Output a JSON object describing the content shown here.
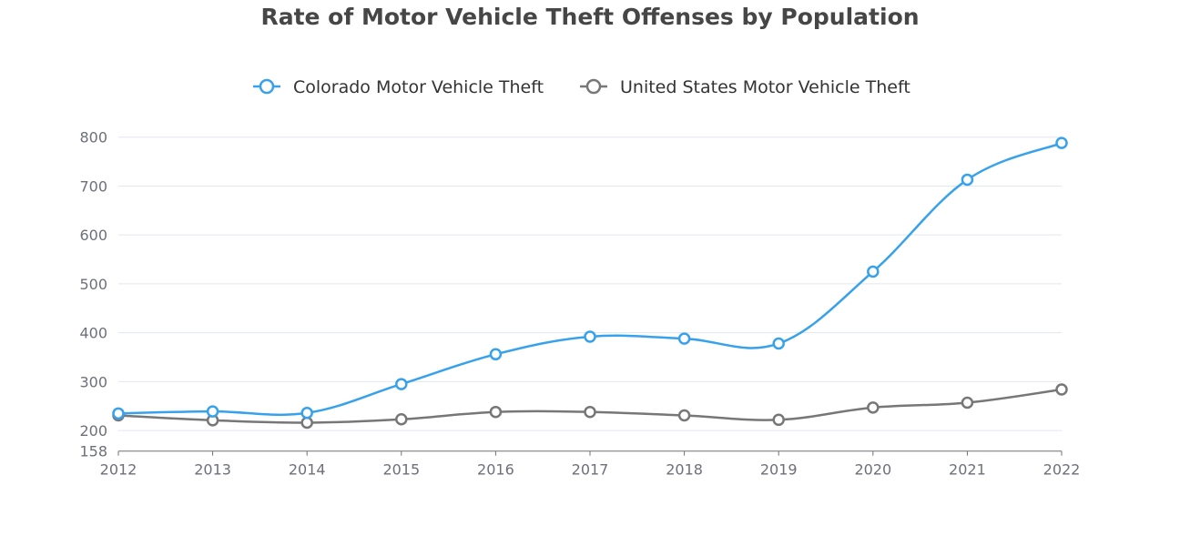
{
  "chart_data": {
    "type": "line",
    "title": "Rate of Motor Vehicle Theft Offenses by Population",
    "xlabel": "",
    "ylabel": "",
    "categories": [
      "2012",
      "2013",
      "2014",
      "2015",
      "2016",
      "2017",
      "2018",
      "2019",
      "2020",
      "2021",
      "2022"
    ],
    "ylim": [
      158,
      800
    ],
    "yticks": [
      158,
      200,
      300,
      400,
      500,
      600,
      700,
      800
    ],
    "grid": true,
    "smooth": true,
    "legend_position": "top",
    "series": [
      {
        "name": "Colorado Motor Vehicle Theft",
        "color": "#37a2eb",
        "values": [
          235,
          239,
          236,
          295,
          356,
          392,
          388,
          378,
          525,
          713,
          788
        ]
      },
      {
        "name": "United States Motor Vehicle Theft",
        "color": "#777777",
        "values": [
          231,
          221,
          216,
          223,
          238,
          238,
          231,
          222,
          247,
          257,
          284
        ]
      }
    ]
  }
}
